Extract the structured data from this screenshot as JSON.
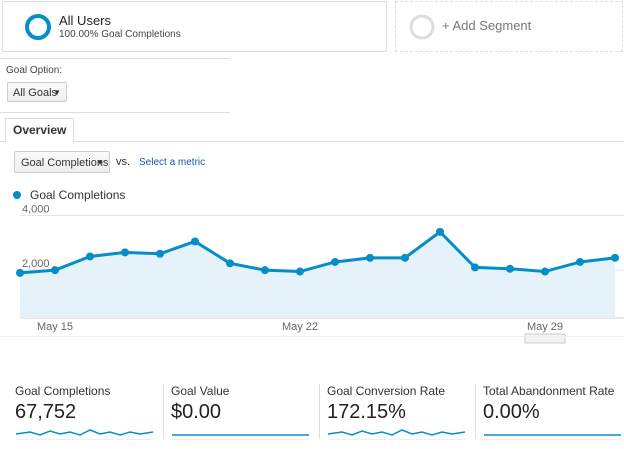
{
  "segments": {
    "active": {
      "title": "All Users",
      "subtitle": "100.00% Goal Completions"
    },
    "add": "+ Add Segment"
  },
  "goal_option": {
    "label": "Goal Option:",
    "value": "All Goals"
  },
  "tab": "Overview",
  "metric_picker": {
    "value": "Goal Completions",
    "vs": "vs.",
    "select": "Select a metric"
  },
  "chart_data": {
    "type": "line",
    "series": [
      {
        "name": "Goal Completions",
        "color": "#058dc7",
        "values": [
          1900,
          2000,
          2500,
          2650,
          2600,
          3050,
          2250,
          2000,
          1950,
          2300,
          2450,
          2450,
          3400,
          2100,
          2050,
          1950,
          2300,
          2450
        ]
      }
    ],
    "categories": [
      null,
      "May 15",
      null,
      null,
      null,
      null,
      null,
      null,
      "May 22",
      null,
      null,
      null,
      null,
      null,
      null,
      "May 29",
      null,
      null
    ],
    "ylim": [
      250,
      4200
    ],
    "yticks": [
      {
        "value": 2000,
        "label": "2,000"
      },
      {
        "value": 4000,
        "label": "4,000"
      }
    ],
    "grid": true
  },
  "scorecards": [
    {
      "label": "Goal Completions",
      "value": "67,752"
    },
    {
      "label": "Goal Value",
      "value": "$0.00"
    },
    {
      "label": "Goal Conversion Rate",
      "value": "172.15%"
    },
    {
      "label": "Total Abandonment Rate",
      "value": "0.00%"
    }
  ]
}
